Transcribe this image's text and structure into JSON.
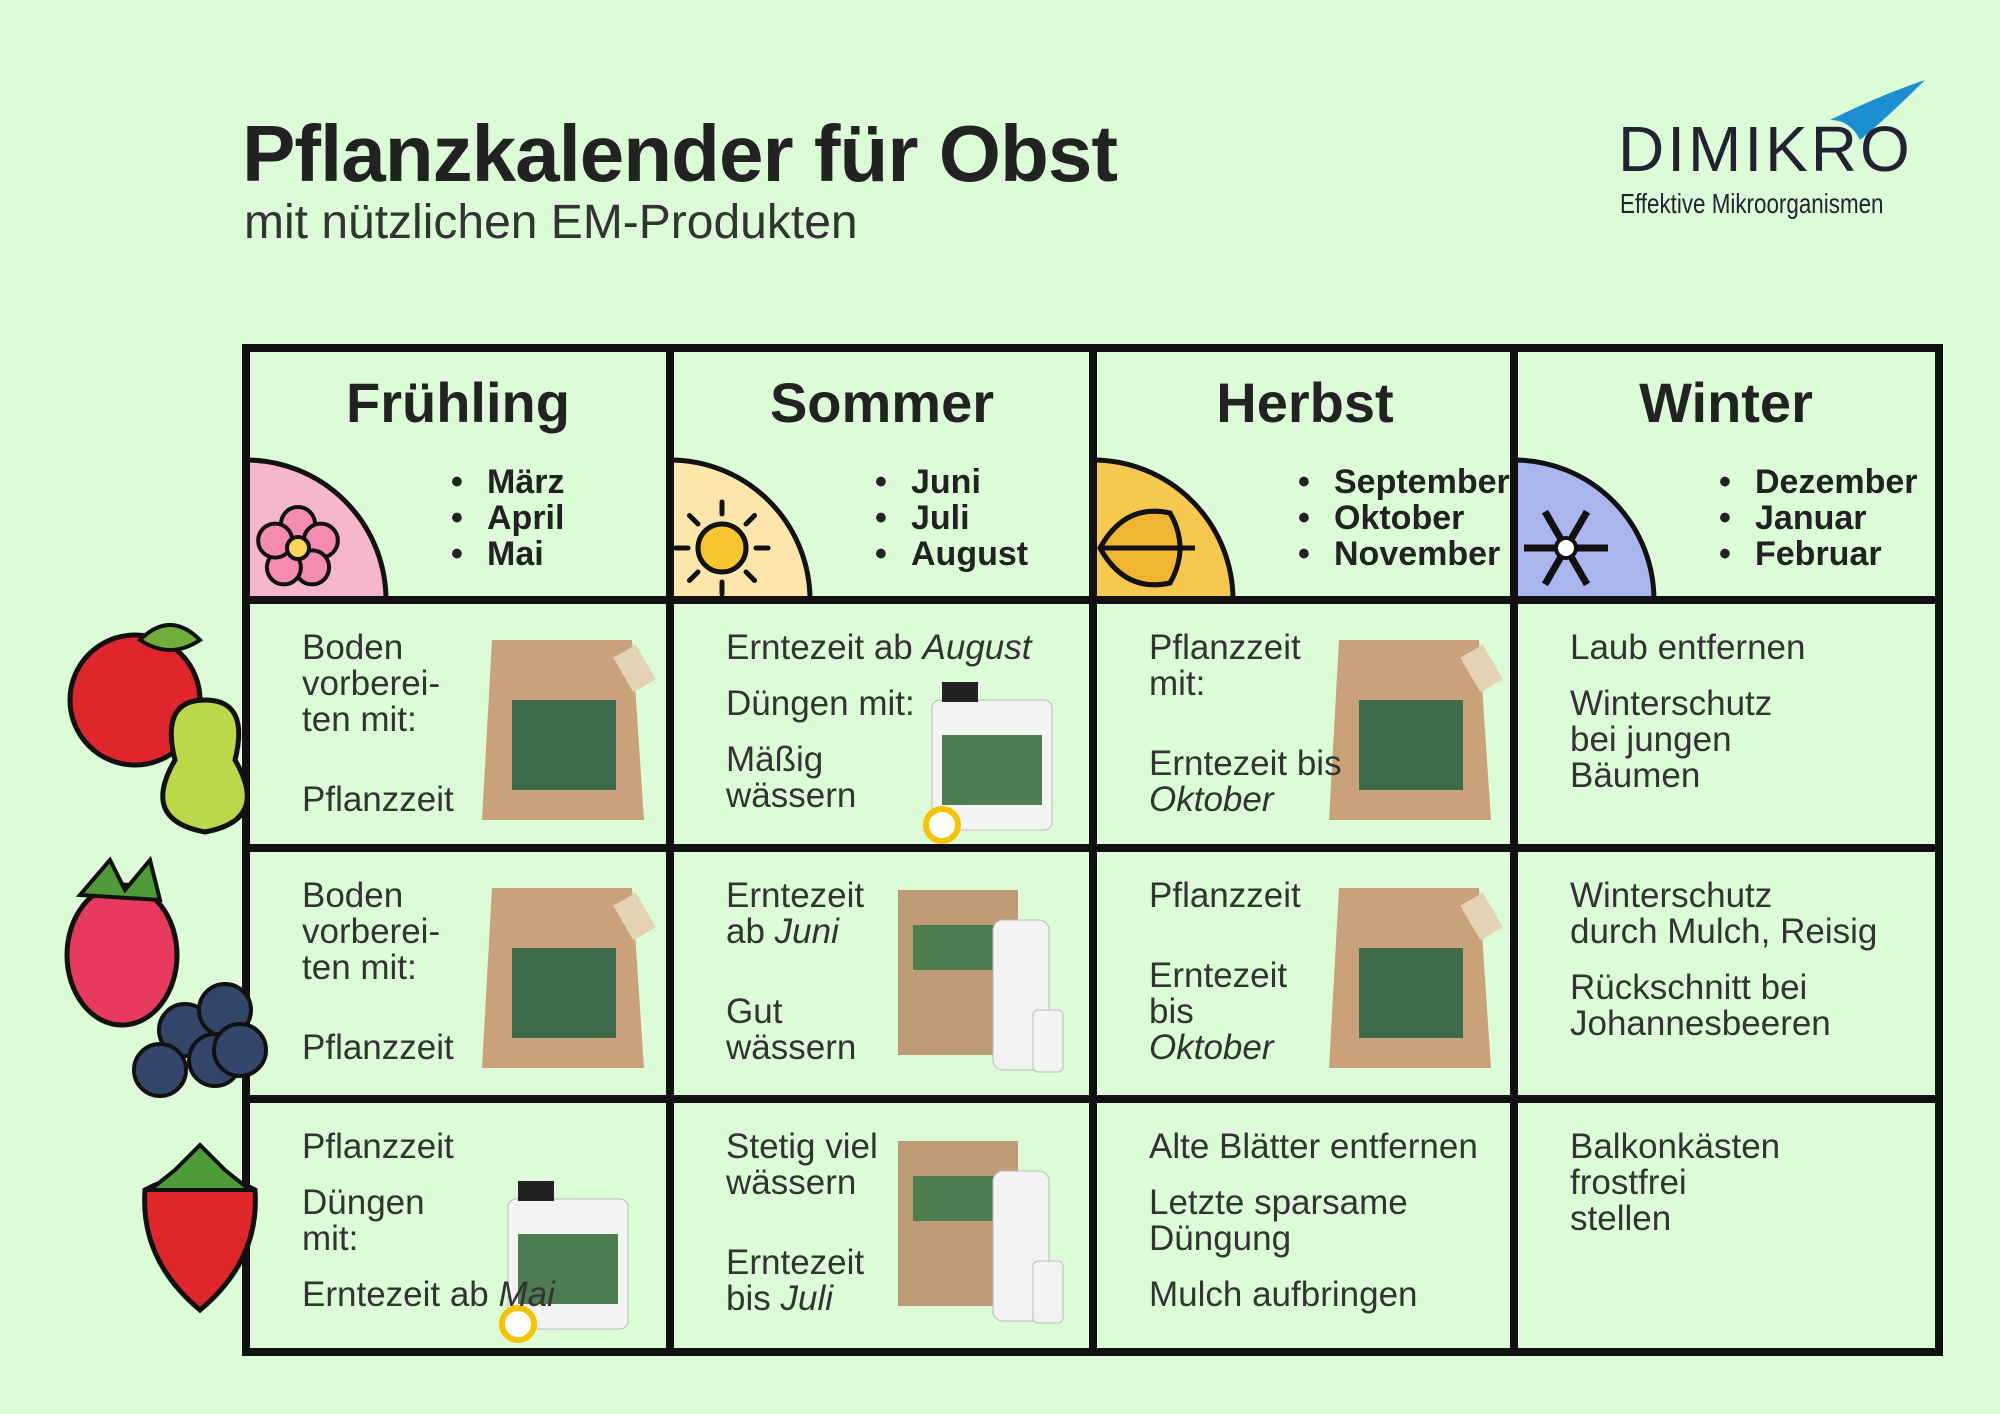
{
  "header": {
    "title": "Pflanzkalender für Obst",
    "subtitle": "mit nützlichen EM-Produkten"
  },
  "logo": {
    "brand": "DIMIKRO",
    "tagline": "Effektive Mikroorganismen"
  },
  "seasons": [
    {
      "name": "Frühling",
      "months": [
        "März",
        "April",
        "Mai"
      ]
    },
    {
      "name": "Sommer",
      "months": [
        "Juni",
        "Juli",
        "August"
      ]
    },
    {
      "name": "Herbst",
      "months": [
        "September",
        "Oktober",
        "November"
      ]
    },
    {
      "name": "Winter",
      "months": [
        "Dezember",
        "Januar",
        "Februar"
      ]
    }
  ],
  "rows": [
    {
      "cells": [
        {
          "paragraphs": [
            [
              "Boden",
              "vorberei-",
              "ten mit:"
            ],
            [
              "Pflanzzeit"
            ]
          ]
        },
        {
          "paragraphs": [
            [
              {
                "text": "Erntezeit ab",
                "em": "August"
              }
            ],
            [
              "Düngen mit:"
            ],
            [
              "Mäßig",
              "wässern"
            ]
          ]
        },
        {
          "paragraphs": [
            [
              "Pflanzzeit",
              "mit:"
            ],
            [
              "Erntezeit bis",
              {
                "em": "Oktober"
              }
            ]
          ]
        },
        {
          "paragraphs": [
            [
              "Laub entfernen"
            ],
            [
              "Winterschutz",
              "bei jungen",
              "Bäumen"
            ]
          ]
        }
      ]
    },
    {
      "cells": [
        {
          "paragraphs": [
            [
              "Boden",
              "vorberei-",
              "ten mit:"
            ],
            [
              "Pflanzzeit"
            ]
          ]
        },
        {
          "paragraphs": [
            [
              "Erntezeit",
              {
                "text": "ab",
                "em": "Juni"
              }
            ],
            [
              "Gut",
              "wässern"
            ]
          ]
        },
        {
          "paragraphs": [
            [
              "Pflanzzeit"
            ],
            [
              "Erntezeit",
              "bis",
              {
                "em": "Oktober"
              }
            ]
          ]
        },
        {
          "paragraphs": [
            [
              "Winterschutz",
              "durch Mulch, Reisig"
            ],
            [
              "Rückschnitt bei",
              "Johannesbeeren"
            ]
          ]
        }
      ]
    },
    {
      "cells": [
        {
          "paragraphs": [
            [
              "Pflanzzeit"
            ],
            [
              "Düngen",
              "mit:"
            ],
            [
              {
                "text": "Erntezeit ab",
                "em": "Mai"
              }
            ]
          ]
        },
        {
          "paragraphs": [
            [
              "Stetig viel",
              "wässern"
            ],
            [
              "Erntezeit",
              {
                "text": "bis",
                "em": "Juli"
              }
            ]
          ]
        },
        {
          "paragraphs": [
            [
              "Alte Blätter entfernen"
            ],
            [
              "Letzte sparsame",
              "Düngung"
            ],
            [
              "Mulch aufbringen"
            ]
          ]
        },
        {
          "paragraphs": [
            [
              "Balkonkästen",
              "frostfrei",
              "stellen"
            ]
          ]
        }
      ]
    }
  ]
}
